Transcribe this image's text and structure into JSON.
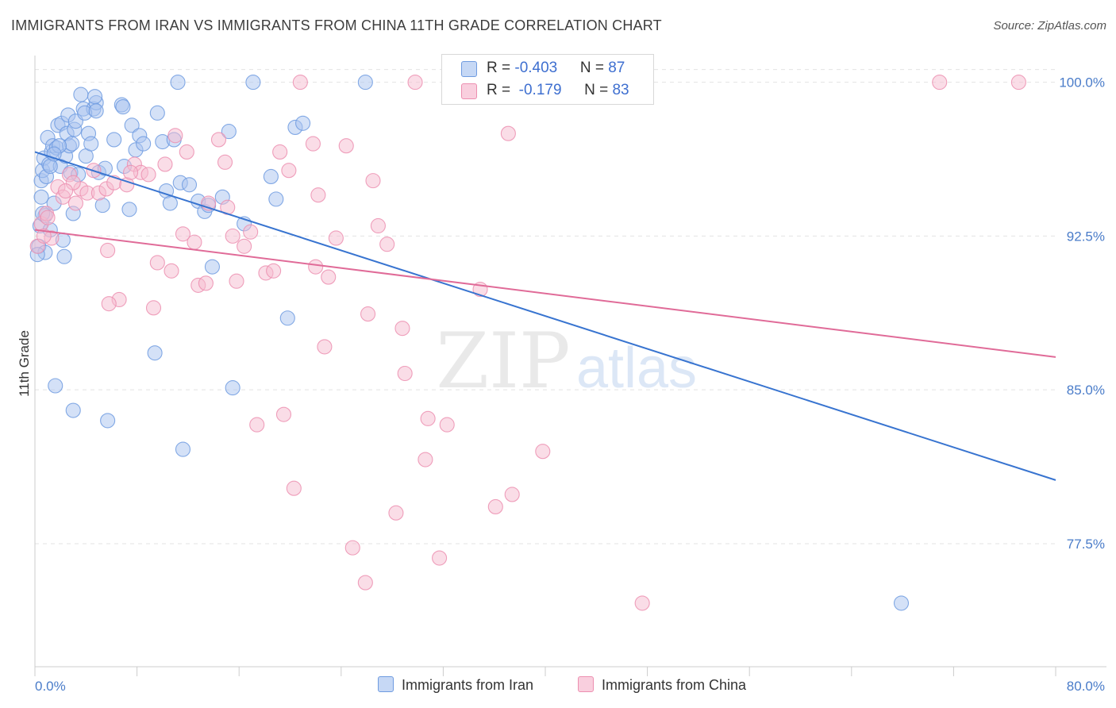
{
  "title": "IMMIGRANTS FROM IRAN VS IMMIGRANTS FROM CHINA 11TH GRADE CORRELATION CHART",
  "source": "Source: ZipAtlas.com",
  "watermark": {
    "zip": "ZIP",
    "atlas": "atlas"
  },
  "legend_top": {
    "rows": [
      {
        "r_label": "R = ",
        "r_value": "-0.403",
        "n_label": "N = ",
        "n_value": "87"
      },
      {
        "r_label": "R = ",
        "r_value": " -0.179",
        "n_label": "N = ",
        "n_value": "83"
      }
    ]
  },
  "colors": {
    "iran_fill": "#a9c4ef",
    "iran_stroke": "#6f9be0",
    "iran_line": "#3874d0",
    "china_fill": "#f6bcd0",
    "china_stroke": "#ec8fb0",
    "china_line": "#e06b98",
    "grid": "#e3e3e3",
    "axis": "#cccccc",
    "tick_text": "#4a7cc9"
  },
  "chart_data": {
    "type": "scatter",
    "title": "IMMIGRANTS FROM IRAN VS IMMIGRANTS FROM CHINA 11TH GRADE CORRELATION CHART",
    "xlabel": "",
    "ylabel": "11th Grade",
    "xlim": [
      0,
      80
    ],
    "ylim": [
      71.5,
      101.3
    ],
    "x_tick_labels": [
      "0.0%",
      "80.0%"
    ],
    "y_ticks": [
      100.0,
      92.5,
      85.0,
      77.5
    ],
    "y_tick_labels": [
      "100.0%",
      "92.5%",
      "85.0%",
      "77.5%"
    ],
    "grid": true,
    "legend_position": "top-center",
    "series": [
      {
        "name": "Immigrants from Iran",
        "r": -0.403,
        "n": 87,
        "trend": {
          "x": [
            0,
            80
          ],
          "y": [
            96.6,
            80.6
          ]
        },
        "points": [
          [
            0.3,
            92.0
          ],
          [
            0.4,
            93.0
          ],
          [
            0.5,
            94.4
          ],
          [
            0.5,
            95.2
          ],
          [
            0.6,
            95.7
          ],
          [
            0.7,
            96.3
          ],
          [
            0.8,
            93.5
          ],
          [
            0.9,
            95.4
          ],
          [
            1.0,
            97.3
          ],
          [
            1.1,
            96.0
          ],
          [
            1.2,
            92.8
          ],
          [
            1.3,
            96.6
          ],
          [
            1.4,
            96.9
          ],
          [
            1.5,
            94.1
          ],
          [
            1.7,
            96.8
          ],
          [
            1.8,
            97.9
          ],
          [
            2.0,
            95.9
          ],
          [
            2.1,
            98.0
          ],
          [
            2.2,
            92.3
          ],
          [
            2.3,
            91.5
          ],
          [
            2.4,
            96.4
          ],
          [
            2.5,
            97.5
          ],
          [
            2.6,
            98.4
          ],
          [
            2.7,
            96.9
          ],
          [
            2.8,
            95.6
          ],
          [
            3.0,
            93.6
          ],
          [
            3.1,
            97.7
          ],
          [
            3.2,
            98.1
          ],
          [
            3.4,
            95.5
          ],
          [
            3.6,
            99.4
          ],
          [
            3.8,
            98.7
          ],
          [
            4.0,
            96.4
          ],
          [
            4.2,
            97.5
          ],
          [
            4.4,
            97.0
          ],
          [
            4.6,
            98.7
          ],
          [
            4.8,
            99.0
          ],
          [
            5.0,
            95.6
          ],
          [
            5.3,
            94.0
          ],
          [
            5.5,
            95.8
          ],
          [
            6.2,
            97.2
          ],
          [
            6.8,
            98.9
          ],
          [
            7.0,
            95.9
          ],
          [
            7.4,
            93.8
          ],
          [
            7.6,
            97.9
          ],
          [
            7.9,
            96.7
          ],
          [
            8.2,
            97.4
          ],
          [
            8.5,
            97.0
          ],
          [
            9.6,
            98.5
          ],
          [
            10.0,
            97.1
          ],
          [
            10.3,
            94.7
          ],
          [
            10.6,
            94.1
          ],
          [
            10.9,
            97.2
          ],
          [
            11.2,
            100.0
          ],
          [
            11.4,
            95.1
          ],
          [
            12.1,
            95.0
          ],
          [
            12.8,
            94.2
          ],
          [
            13.3,
            93.7
          ],
          [
            13.6,
            94.0
          ],
          [
            13.9,
            91.0
          ],
          [
            14.7,
            94.4
          ],
          [
            15.2,
            97.6
          ],
          [
            16.4,
            93.1
          ],
          [
            17.1,
            100.0
          ],
          [
            18.5,
            95.4
          ],
          [
            18.9,
            94.3
          ],
          [
            19.8,
            88.5
          ],
          [
            20.4,
            97.8
          ],
          [
            21.0,
            98.0
          ],
          [
            1.6,
            85.2
          ],
          [
            3.0,
            84.0
          ],
          [
            5.7,
            83.5
          ],
          [
            9.4,
            86.8
          ],
          [
            11.6,
            82.1
          ],
          [
            15.5,
            85.1
          ],
          [
            25.9,
            100.0
          ],
          [
            6.9,
            98.8
          ],
          [
            4.7,
            99.3
          ],
          [
            3.9,
            98.5
          ],
          [
            2.9,
            97.0
          ],
          [
            1.9,
            96.9
          ],
          [
            1.2,
            95.9
          ],
          [
            0.6,
            93.6
          ],
          [
            0.8,
            91.7
          ],
          [
            1.5,
            96.5
          ],
          [
            4.8,
            98.6
          ],
          [
            67.9,
            74.6
          ],
          [
            0.2,
            91.6
          ]
        ]
      },
      {
        "name": "Immigrants from China",
        "r": -0.179,
        "n": 83,
        "trend": {
          "x": [
            0,
            80
          ],
          "y": [
            92.8,
            86.6
          ]
        },
        "points": [
          [
            0.2,
            92.0
          ],
          [
            0.5,
            93.1
          ],
          [
            0.9,
            93.6
          ],
          [
            1.3,
            92.4
          ],
          [
            1.8,
            94.9
          ],
          [
            2.2,
            94.4
          ],
          [
            2.7,
            95.5
          ],
          [
            3.2,
            94.1
          ],
          [
            3.6,
            94.8
          ],
          [
            4.1,
            94.6
          ],
          [
            4.6,
            95.7
          ],
          [
            5.0,
            94.6
          ],
          [
            5.6,
            94.8
          ],
          [
            5.7,
            91.8
          ],
          [
            6.2,
            95.1
          ],
          [
            6.6,
            89.4
          ],
          [
            7.2,
            95.0
          ],
          [
            7.8,
            96.0
          ],
          [
            8.3,
            95.6
          ],
          [
            8.9,
            95.5
          ],
          [
            9.3,
            89.0
          ],
          [
            9.6,
            91.2
          ],
          [
            10.2,
            96.0
          ],
          [
            10.7,
            90.8
          ],
          [
            11.0,
            97.4
          ],
          [
            11.6,
            92.6
          ],
          [
            11.9,
            96.6
          ],
          [
            12.5,
            92.2
          ],
          [
            12.8,
            90.1
          ],
          [
            13.4,
            90.2
          ],
          [
            13.6,
            94.1
          ],
          [
            14.4,
            97.2
          ],
          [
            14.9,
            96.1
          ],
          [
            15.1,
            93.9
          ],
          [
            15.5,
            92.5
          ],
          [
            15.8,
            90.3
          ],
          [
            16.4,
            92.0
          ],
          [
            16.9,
            92.7
          ],
          [
            17.4,
            83.3
          ],
          [
            18.1,
            90.7
          ],
          [
            18.7,
            90.8
          ],
          [
            19.2,
            96.6
          ],
          [
            19.5,
            83.8
          ],
          [
            19.9,
            95.7
          ],
          [
            20.3,
            80.2
          ],
          [
            20.8,
            100.0
          ],
          [
            21.8,
            97.0
          ],
          [
            22.0,
            91.0
          ],
          [
            22.2,
            94.5
          ],
          [
            22.7,
            87.1
          ],
          [
            23.0,
            90.5
          ],
          [
            23.6,
            92.4
          ],
          [
            24.4,
            96.9
          ],
          [
            24.9,
            77.3
          ],
          [
            25.9,
            75.6
          ],
          [
            26.1,
            88.7
          ],
          [
            26.5,
            95.2
          ],
          [
            26.9,
            93.0
          ],
          [
            27.6,
            92.1
          ],
          [
            28.3,
            79.0
          ],
          [
            28.8,
            88.0
          ],
          [
            29.0,
            85.8
          ],
          [
            29.8,
            100.0
          ],
          [
            30.6,
            81.6
          ],
          [
            30.8,
            83.6
          ],
          [
            31.7,
            76.8
          ],
          [
            32.3,
            83.3
          ],
          [
            33.9,
            100.0
          ],
          [
            34.9,
            89.9
          ],
          [
            36.1,
            79.3
          ],
          [
            37.1,
            97.5
          ],
          [
            37.4,
            79.9
          ],
          [
            39.0,
            100.0
          ],
          [
            39.8,
            82.0
          ],
          [
            47.6,
            74.6
          ],
          [
            70.9,
            100.0
          ],
          [
            77.1,
            100.0
          ],
          [
            3.0,
            95.1
          ],
          [
            7.5,
            95.6
          ],
          [
            1.0,
            93.4
          ],
          [
            2.4,
            94.7
          ],
          [
            5.8,
            89.2
          ],
          [
            0.7,
            92.5
          ]
        ]
      }
    ]
  },
  "legend_bottom": [
    "Immigrants from Iran",
    "Immigrants from China"
  ]
}
